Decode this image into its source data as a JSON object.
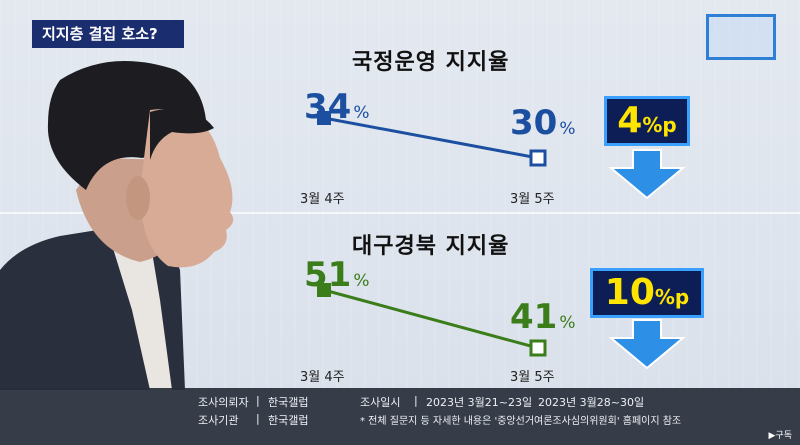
{
  "headline": "지지층 결집 호소?",
  "colors": {
    "blue": "#1c4fa0",
    "green": "#3a7d1a",
    "navy": "#0c1e55",
    "yellow": "#ffe400",
    "arrow": "#2e8fe6"
  },
  "chart_data": [
    {
      "type": "line",
      "title": "국정운영 지지율",
      "categories": [
        "3월 4주",
        "3월 5주"
      ],
      "values": [
        34,
        30
      ],
      "value_labels": [
        "34",
        "30"
      ],
      "unit": "%",
      "change": {
        "value": "4",
        "unit": "%p",
        "direction": "down"
      }
    },
    {
      "type": "line",
      "title": "대구경북 지지율",
      "categories": [
        "3월 4주",
        "3월 5주"
      ],
      "values": [
        51,
        41
      ],
      "value_labels": [
        "51",
        "41"
      ],
      "unit": "%",
      "change": {
        "value": "10",
        "unit": "%p",
        "direction": "down"
      }
    }
  ],
  "footer": {
    "client_label": "조사의뢰자",
    "client_value": "한국갤럽",
    "agency_label": "조사기관",
    "agency_value": "한국갤럽",
    "date_label": "조사일시",
    "date_1": "2023년 3월21~23일",
    "date_2": "2023년 3월28~30일",
    "note": "* 전체 질문지 등 자세한 내용은 '중앙선거여론조사심의위원회' 홈페이지 참조",
    "sep": "|"
  },
  "badge": "▶구독"
}
